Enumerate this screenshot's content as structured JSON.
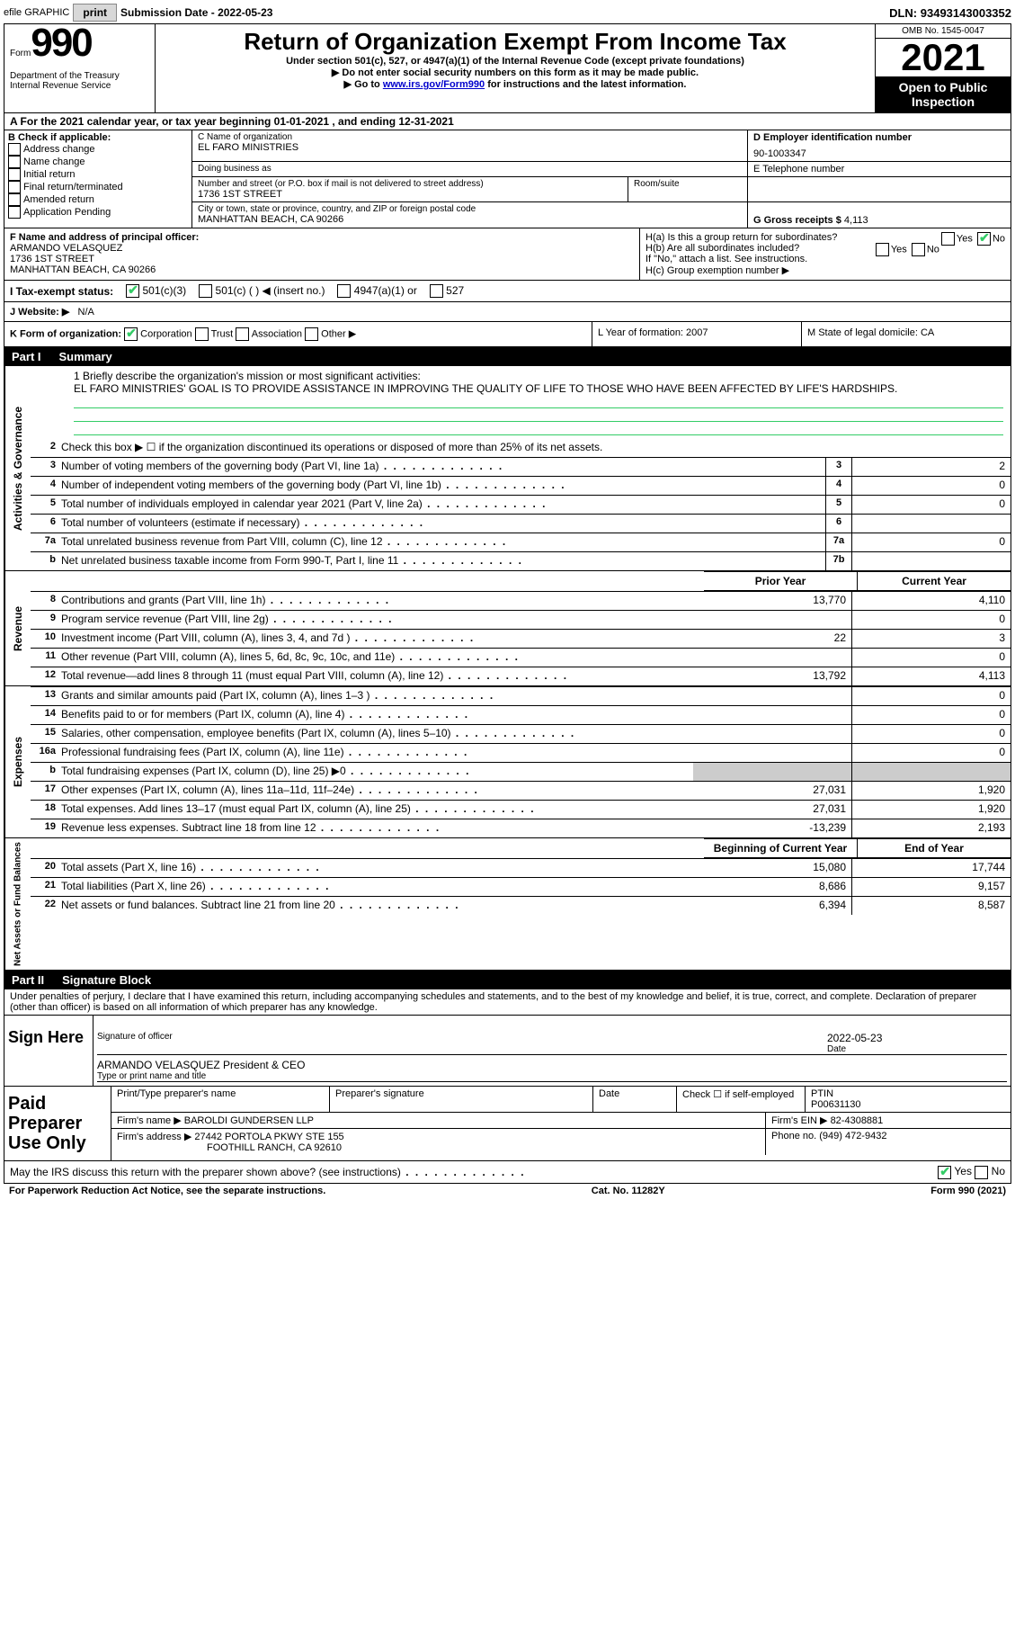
{
  "top": {
    "efile": "efile GRAPHIC",
    "print": "print",
    "subdate_label": "Submission Date - ",
    "subdate": "2022-05-23",
    "dln_label": "DLN: ",
    "dln": "93493143003352"
  },
  "header": {
    "form_word": "Form",
    "form_num": "990",
    "title": "Return of Organization Exempt From Income Tax",
    "subtitle": "Under section 501(c), 527, or 4947(a)(1) of the Internal Revenue Code (except private foundations)",
    "note1": "▶ Do not enter social security numbers on this form as it may be made public.",
    "note2_pre": "▶ Go to ",
    "note2_link": "www.irs.gov/Form990",
    "note2_post": " for instructions and the latest information.",
    "dept": "Department of the Treasury",
    "irs": "Internal Revenue Service",
    "omb": "OMB No. 1545-0047",
    "year": "2021",
    "open": "Open to Public Inspection"
  },
  "row_a": "A For the 2021 calendar year, or tax year beginning 01-01-2021   , and ending 12-31-2021",
  "block_b": {
    "label": "B Check if applicable:",
    "opts": [
      "Address change",
      "Name change",
      "Initial return",
      "Final return/terminated",
      "Amended return",
      "Application Pending"
    ]
  },
  "block_c": {
    "name_label": "C Name of organization",
    "name": "EL FARO MINISTRIES",
    "dba_label": "Doing business as",
    "addr_label": "Number and street (or P.O. box if mail is not delivered to street address)",
    "addr": "1736 1ST STREET",
    "suite_label": "Room/suite",
    "city_label": "City or town, state or province, country, and ZIP or foreign postal code",
    "city": "MANHATTAN BEACH, CA  90266"
  },
  "block_d": {
    "label": "D Employer identification number",
    "val": "90-1003347"
  },
  "block_e": {
    "label": "E Telephone number",
    "val": ""
  },
  "block_g": {
    "label": "G Gross receipts $",
    "val": "4,113"
  },
  "block_f": {
    "label": "F Name and address of principal officer:",
    "name": "ARMANDO VELASQUEZ",
    "addr1": "1736 1ST STREET",
    "addr2": "MANHATTAN BEACH, CA  90266"
  },
  "block_h": {
    "ha": "H(a)  Is this a group return for subordinates?",
    "hb": "H(b)  Are all subordinates included?",
    "hb_note": "If \"No,\" attach a list. See instructions.",
    "hc": "H(c)  Group exemption number ▶",
    "yes": "Yes",
    "no": "No"
  },
  "row_i": {
    "label": "I  Tax-exempt status:",
    "o1": "501(c)(3)",
    "o2": "501(c) (   ) ◀ (insert no.)",
    "o3": "4947(a)(1) or",
    "o4": "527"
  },
  "row_j": {
    "label": "J  Website: ▶",
    "val": "N/A"
  },
  "row_k": {
    "label": "K Form of organization:",
    "o1": "Corporation",
    "o2": "Trust",
    "o3": "Association",
    "o4": "Other ▶",
    "l": "L Year of formation: 2007",
    "m": "M State of legal domicile: CA"
  },
  "part1": {
    "label": "Part I",
    "title": "Summary"
  },
  "mission": {
    "q": "1  Briefly describe the organization's mission or most significant activities:",
    "a": "EL FARO MINISTRIES' GOAL IS TO PROVIDE ASSISTANCE IN IMPROVING THE QUALITY OF LIFE TO THOSE WHO HAVE BEEN AFFECTED BY LIFE'S HARDSHIPS."
  },
  "lines_act": [
    {
      "n": "2",
      "t": "Check this box ▶ ☐ if the organization discontinued its operations or disposed of more than 25% of its net assets."
    },
    {
      "n": "3",
      "t": "Number of voting members of the governing body (Part VI, line 1a)",
      "b": "3",
      "v": "2"
    },
    {
      "n": "4",
      "t": "Number of independent voting members of the governing body (Part VI, line 1b)",
      "b": "4",
      "v": "0"
    },
    {
      "n": "5",
      "t": "Total number of individuals employed in calendar year 2021 (Part V, line 2a)",
      "b": "5",
      "v": "0"
    },
    {
      "n": "6",
      "t": "Total number of volunteers (estimate if necessary)",
      "b": "6",
      "v": ""
    },
    {
      "n": "7a",
      "t": "Total unrelated business revenue from Part VIII, column (C), line 12",
      "b": "7a",
      "v": "0"
    },
    {
      "n": "b",
      "t": "Net unrelated business taxable income from Form 990-T, Part I, line 11",
      "b": "7b",
      "v": ""
    }
  ],
  "col_heads": {
    "prior": "Prior Year",
    "curr": "Current Year"
  },
  "lines_rev": [
    {
      "n": "8",
      "t": "Contributions and grants (Part VIII, line 1h)",
      "p": "13,770",
      "c": "4,110"
    },
    {
      "n": "9",
      "t": "Program service revenue (Part VIII, line 2g)",
      "p": "",
      "c": "0"
    },
    {
      "n": "10",
      "t": "Investment income (Part VIII, column (A), lines 3, 4, and 7d )",
      "p": "22",
      "c": "3"
    },
    {
      "n": "11",
      "t": "Other revenue (Part VIII, column (A), lines 5, 6d, 8c, 9c, 10c, and 11e)",
      "p": "",
      "c": "0"
    },
    {
      "n": "12",
      "t": "Total revenue—add lines 8 through 11 (must equal Part VIII, column (A), line 12)",
      "p": "13,792",
      "c": "4,113"
    }
  ],
  "lines_exp": [
    {
      "n": "13",
      "t": "Grants and similar amounts paid (Part IX, column (A), lines 1–3 )",
      "p": "",
      "c": "0"
    },
    {
      "n": "14",
      "t": "Benefits paid to or for members (Part IX, column (A), line 4)",
      "p": "",
      "c": "0"
    },
    {
      "n": "15",
      "t": "Salaries, other compensation, employee benefits (Part IX, column (A), lines 5–10)",
      "p": "",
      "c": "0"
    },
    {
      "n": "16a",
      "t": "Professional fundraising fees (Part IX, column (A), line 11e)",
      "p": "",
      "c": "0"
    },
    {
      "n": "b",
      "t": "Total fundraising expenses (Part IX, column (D), line 25) ▶0",
      "p": "gray",
      "c": "gray"
    },
    {
      "n": "17",
      "t": "Other expenses (Part IX, column (A), lines 11a–11d, 11f–24e)",
      "p": "27,031",
      "c": "1,920"
    },
    {
      "n": "18",
      "t": "Total expenses. Add lines 13–17 (must equal Part IX, column (A), line 25)",
      "p": "27,031",
      "c": "1,920"
    },
    {
      "n": "19",
      "t": "Revenue less expenses. Subtract line 18 from line 12",
      "p": "-13,239",
      "c": "2,193"
    }
  ],
  "col_heads2": {
    "b": "Beginning of Current Year",
    "e": "End of Year"
  },
  "lines_net": [
    {
      "n": "20",
      "t": "Total assets (Part X, line 16)",
      "p": "15,080",
      "c": "17,744"
    },
    {
      "n": "21",
      "t": "Total liabilities (Part X, line 26)",
      "p": "8,686",
      "c": "9,157"
    },
    {
      "n": "22",
      "t": "Net assets or fund balances. Subtract line 21 from line 20",
      "p": "6,394",
      "c": "8,587"
    }
  ],
  "side_labels": {
    "act": "Activities & Governance",
    "rev": "Revenue",
    "exp": "Expenses",
    "net": "Net Assets or Fund Balances"
  },
  "part2": {
    "label": "Part II",
    "title": "Signature Block"
  },
  "penalty": "Under penalties of perjury, I declare that I have examined this return, including accompanying schedules and statements, and to the best of my knowledge and belief, it is true, correct, and complete. Declaration of preparer (other than officer) is based on all information of which preparer has any knowledge.",
  "sign": {
    "here": "Sign Here",
    "sig_officer": "Signature of officer",
    "date": "Date",
    "sig_date": "2022-05-23",
    "name": "ARMANDO VELASQUEZ  President & CEO",
    "type": "Type or print name and title"
  },
  "prep": {
    "label": "Paid Preparer Use Only",
    "h1": "Print/Type preparer's name",
    "h2": "Preparer's signature",
    "h3": "Date",
    "h4": "Check ☐ if self-employed",
    "h5": "PTIN",
    "ptin": "P00631130",
    "firm_label": "Firm's name   ▶",
    "firm": "BAROLDI GUNDERSEN LLP",
    "ein_label": "Firm's EIN ▶",
    "ein": "82-4308881",
    "addr_label": "Firm's address ▶",
    "addr1": "27442 PORTOLA PKWY STE 155",
    "addr2": "FOOTHILL RANCH, CA  92610",
    "phone_label": "Phone no.",
    "phone": "(949) 472-9432"
  },
  "footer": {
    "q": "May the IRS discuss this return with the preparer shown above? (see instructions)",
    "yes": "Yes",
    "no": "No",
    "pra": "For Paperwork Reduction Act Notice, see the separate instructions.",
    "cat": "Cat. No. 11282Y",
    "form": "Form 990 (2021)"
  }
}
